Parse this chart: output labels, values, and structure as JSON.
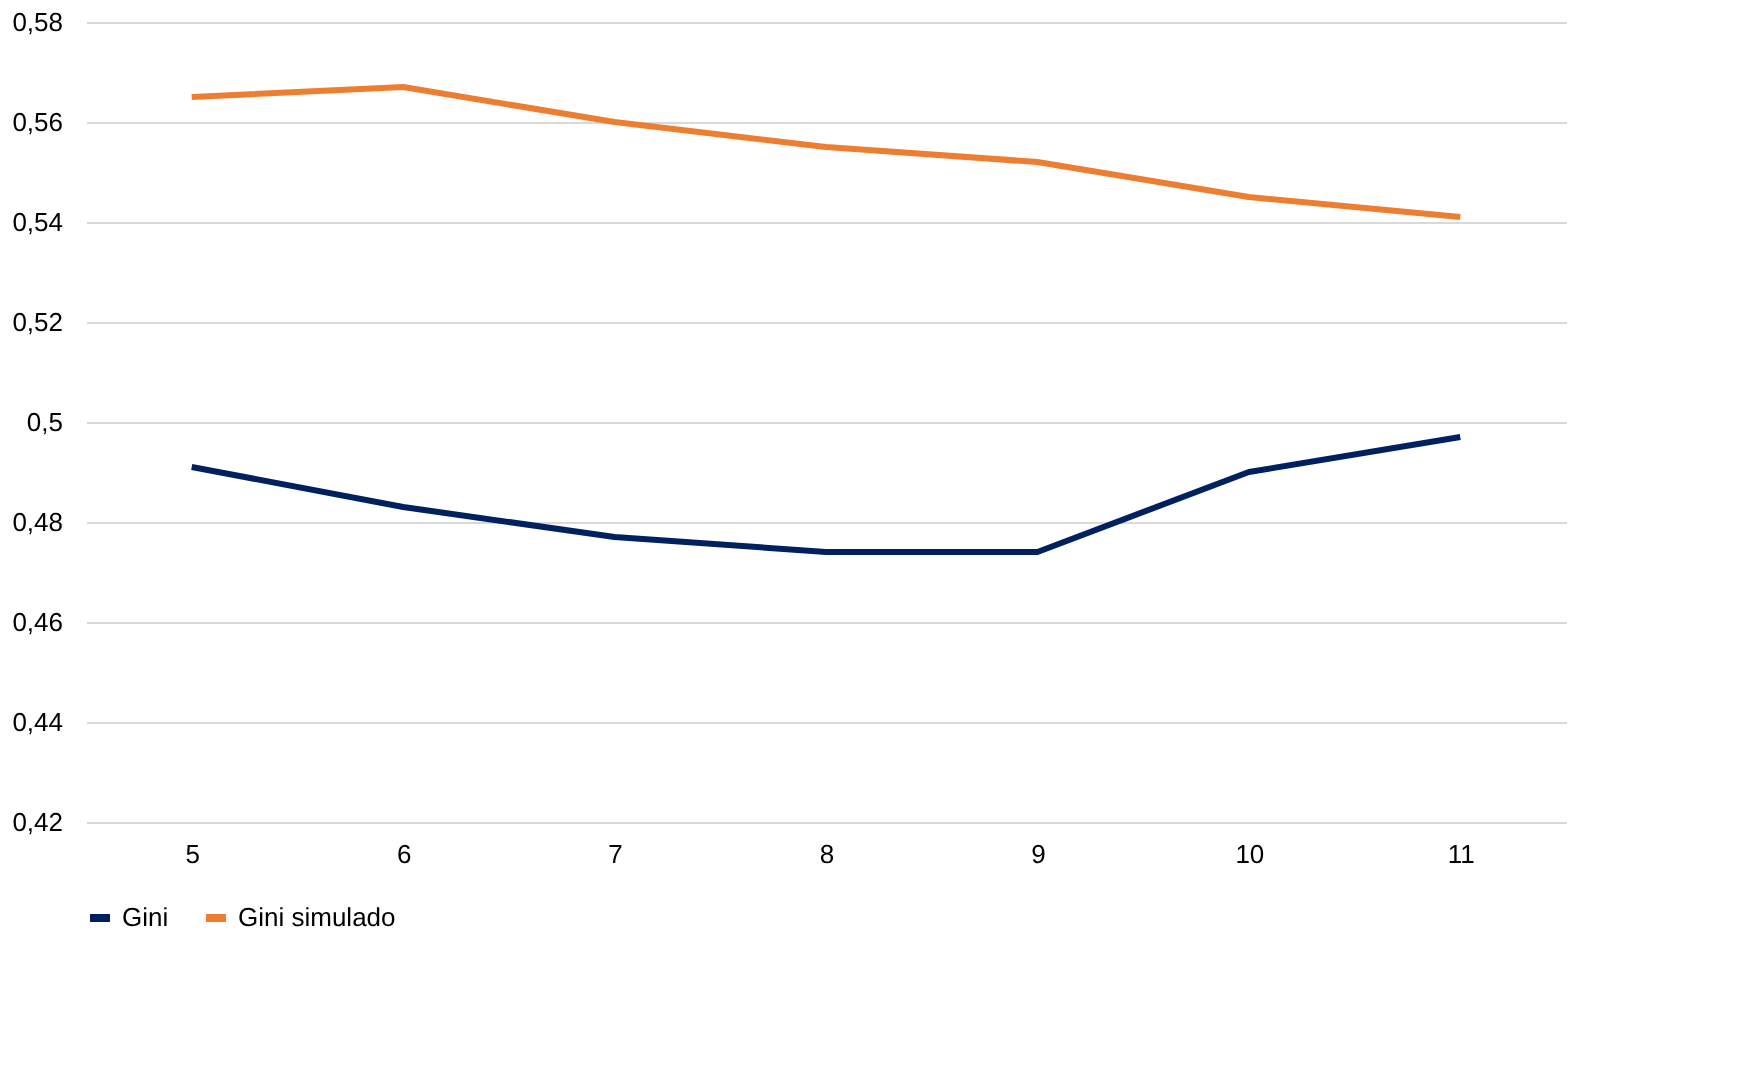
{
  "chart_data": {
    "type": "line",
    "categories": [
      "5",
      "6",
      "7",
      "8",
      "9",
      "10",
      "11"
    ],
    "series": [
      {
        "name": "Gini",
        "color": "#002060",
        "values": [
          0.491,
          0.483,
          0.477,
          0.474,
          0.474,
          0.49,
          0.497
        ]
      },
      {
        "name": "Gini simulado",
        "color": "#ed7d31",
        "values": [
          0.565,
          0.567,
          0.56,
          0.555,
          0.552,
          0.545,
          0.541
        ]
      }
    ],
    "ylim": [
      0.42,
      0.58
    ],
    "yticks": [
      {
        "value": 0.42,
        "label": "0,42"
      },
      {
        "value": 0.44,
        "label": "0,44"
      },
      {
        "value": 0.46,
        "label": "0,46"
      },
      {
        "value": 0.48,
        "label": "0,48"
      },
      {
        "value": 0.5,
        "label": "0,5"
      },
      {
        "value": 0.52,
        "label": "0,52"
      },
      {
        "value": 0.54,
        "label": "0,54"
      },
      {
        "value": 0.56,
        "label": "0,56"
      },
      {
        "value": 0.58,
        "label": "0,58"
      }
    ],
    "grid": "y",
    "legend": "bottom",
    "marker": "none",
    "line_style": "solid"
  }
}
